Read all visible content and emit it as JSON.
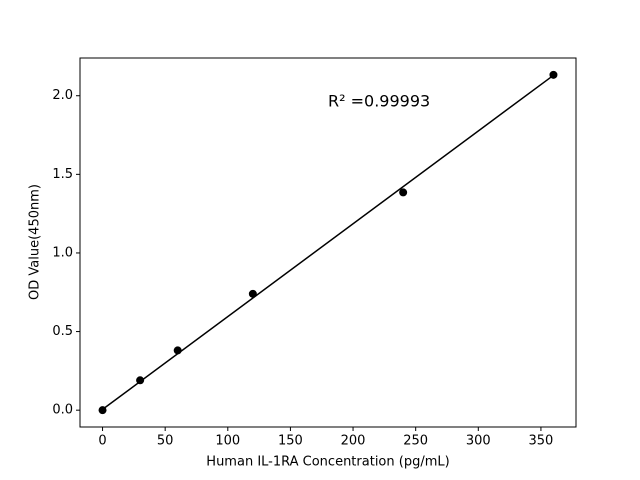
{
  "chart_data": {
    "type": "scatter",
    "xlabel": "Human IL-1RA Concentration (pg/mL)",
    "ylabel": "OD Value(450nm)",
    "annotation": "R² =0.99993",
    "x": [
      0,
      30,
      60,
      120,
      240,
      360
    ],
    "values": [
      0.0,
      0.19,
      0.38,
      0.74,
      1.385,
      2.133
    ],
    "color": "#000000",
    "fit_line": {
      "x": [
        0,
        360
      ],
      "values": [
        0.005,
        2.13
      ],
      "color": "#000000"
    },
    "xlim": [
      -18,
      378
    ],
    "ylim": [
      -0.107,
      2.24
    ],
    "xticks": [
      0,
      50,
      100,
      150,
      200,
      250,
      300,
      350
    ],
    "yticks": [
      {
        "value": 0,
        "label": "0.0"
      },
      {
        "value": 0.5,
        "label": "0.5"
      },
      {
        "value": 1,
        "label": "1.0"
      },
      {
        "value": 1.5,
        "label": "1.5"
      },
      {
        "value": 2,
        "label": "2.0"
      }
    ],
    "grid": false
  }
}
